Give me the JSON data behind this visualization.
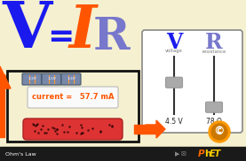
{
  "bg_color": "#f5f0d0",
  "title_V": "V",
  "title_eq": "=",
  "title_I": "I",
  "title_R": "R",
  "V_color": "#1a1aee",
  "I_color": "#ff5500",
  "R_color": "#7777cc",
  "eq_color": "#1a1aee",
  "current_text": "current =   57.7 mA",
  "current_color": "#ff5500",
  "voltage_val": "4.5 V",
  "resistance_val": "78 Ω",
  "bottom_bar_color": "#1a1a1a",
  "bottom_text": "Ohm's Law",
  "phet_P_color": "#ff6600",
  "phet_hET_color": "#ffcc00",
  "arrow_color": "#ff5500",
  "circuit_box_color": "#111111",
  "panel_bg": "#ffffff",
  "slider_line_color": "#333333",
  "slider_handle_color": "#aaaaaa",
  "battery_bg": "#7788aa",
  "battery_text": "#ccddff",
  "resistor_color": "#dd3333",
  "resistor_edge": "#aa2222",
  "phet_circle_color": "#ff9900",
  "panel_border": "#888888"
}
